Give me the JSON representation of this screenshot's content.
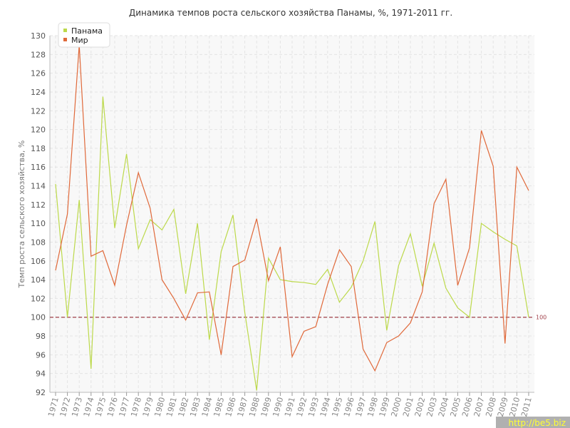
{
  "chart_data": {
    "type": "line",
    "title": "Динамика темпов роста сельского хозяйства Панамы, %, 1971-2011 гг.",
    "y_label": "Темп роста сельского хозяйства, %",
    "categories": [
      "1971",
      "1972",
      "1973",
      "1974",
      "1975",
      "1976",
      "1977",
      "1978",
      "1979",
      "1980",
      "1981",
      "1982",
      "1983",
      "1984",
      "1985",
      "1986",
      "1987",
      "1988",
      "1989",
      "1990",
      "1991",
      "1992",
      "1993",
      "1994",
      "1995",
      "1996",
      "1997",
      "1998",
      "1999",
      "2000",
      "2001",
      "2002",
      "2003",
      "2004",
      "2005",
      "2006",
      "2007",
      "2008",
      "2009",
      "2010",
      "2011"
    ],
    "series": [
      {
        "name": "Панама",
        "color": "#bcd94a",
        "values": [
          114.2,
          100.0,
          112.5,
          94.5,
          123.5,
          109.5,
          117.4,
          107.3,
          110.4,
          109.3,
          111.5,
          102.5,
          110.0,
          97.6,
          107.0,
          110.9,
          100.5,
          92.2,
          106.3,
          104.0,
          103.8,
          103.7,
          103.5,
          105.1,
          101.6,
          103.2,
          106.0,
          110.2,
          98.6,
          105.5,
          108.9,
          103.3,
          107.9,
          103.1,
          101.0,
          100.0,
          110.0,
          109.1,
          108.3,
          107.6,
          100.0
        ]
      },
      {
        "name": "Мир",
        "color": "#e0693a",
        "values": [
          105.0,
          111.0,
          129.0,
          106.5,
          107.1,
          103.4,
          109.8,
          115.4,
          111.6,
          104.0,
          102.0,
          99.7,
          102.6,
          102.7,
          96.0,
          105.4,
          106.1,
          110.5,
          103.9,
          107.5,
          95.8,
          98.5,
          99.0,
          103.5,
          107.2,
          105.4,
          96.6,
          94.3,
          97.3,
          98.0,
          99.4,
          102.7,
          112.1,
          114.7,
          103.4,
          107.4,
          119.9,
          116.1,
          97.2,
          116.0,
          113.5
        ]
      }
    ],
    "ylim": [
      92,
      130
    ],
    "yticks": [
      92,
      94,
      96,
      98,
      100,
      102,
      104,
      106,
      108,
      110,
      112,
      114,
      116,
      118,
      120,
      122,
      124,
      126,
      128,
      130
    ],
    "grid": true,
    "legend": "top-left",
    "reference_line": {
      "value": 100,
      "color": "#a0404a"
    },
    "watermark": "http://be5.biz"
  }
}
